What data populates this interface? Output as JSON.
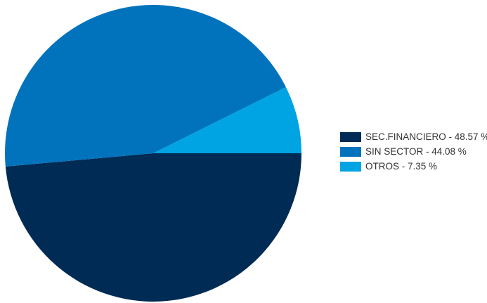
{
  "chart_data": {
    "type": "pie",
    "slices": [
      {
        "label": "SEC.FINANCIERO",
        "value": 48.57,
        "color": "#002b55"
      },
      {
        "label": "SIN SECTOR",
        "value": 44.08,
        "color": "#0073bc"
      },
      {
        "label": "OTROS",
        "value": 7.35,
        "color": "#00a4e2"
      }
    ],
    "legend_entries": [
      "SEC.FINANCIERO - 48.57 %",
      "SIN SECTOR - 44.08 %",
      "OTROS - 7.35 %"
    ],
    "legend_position": "right",
    "value_unit": "%"
  }
}
